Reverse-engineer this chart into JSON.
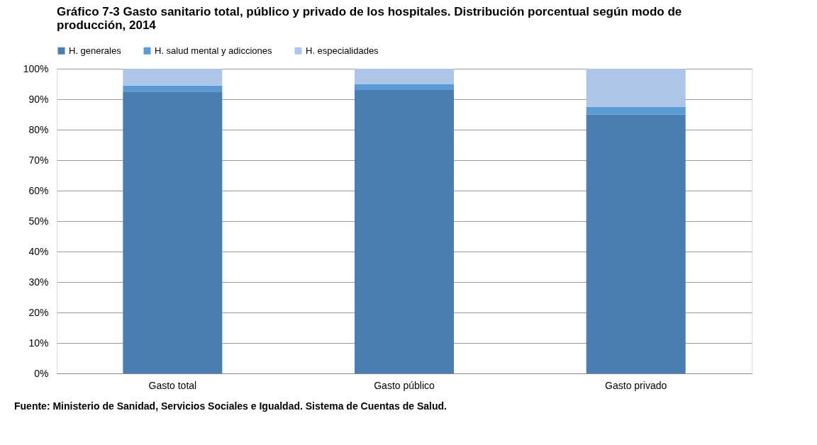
{
  "chart_data": {
    "type": "bar",
    "stacked": true,
    "title": "Gráfico 7-3 Gasto sanitario total, público y privado de los hospitales. Distribución porcentual según modo de producción, 2014",
    "categories": [
      "Gasto total",
      "Gasto público",
      "Gasto privado"
    ],
    "series": [
      {
        "name": "H. generales",
        "color": "#4a7eb0",
        "values": [
          92.5,
          93.0,
          85.0
        ]
      },
      {
        "name": "H. salud mental y adicciones",
        "color": "#5b9bd5",
        "values": [
          2.0,
          2.0,
          2.5
        ]
      },
      {
        "name": "H. especialidades",
        "color": "#adc5e6",
        "values": [
          5.5,
          5.0,
          12.5
        ]
      }
    ],
    "ylim": [
      0,
      100
    ],
    "yticks": [
      {
        "value": 0,
        "label": "0%"
      },
      {
        "value": 10,
        "label": "10%"
      },
      {
        "value": 20,
        "label": "20%"
      },
      {
        "value": 30,
        "label": "30%"
      },
      {
        "value": 40,
        "label": "40%"
      },
      {
        "value": 50,
        "label": "50%"
      },
      {
        "value": 60,
        "label": "60%"
      },
      {
        "value": 70,
        "label": "70%"
      },
      {
        "value": 80,
        "label": "80%"
      },
      {
        "value": 90,
        "label": "90%"
      },
      {
        "value": 100,
        "label": "100%"
      }
    ],
    "grid": "y",
    "legend": "top",
    "annotations": [
      "Fuente: Ministerio de Sanidad, Servicios Sociales e Igualdad. Sistema de Cuentas de Salud."
    ]
  }
}
